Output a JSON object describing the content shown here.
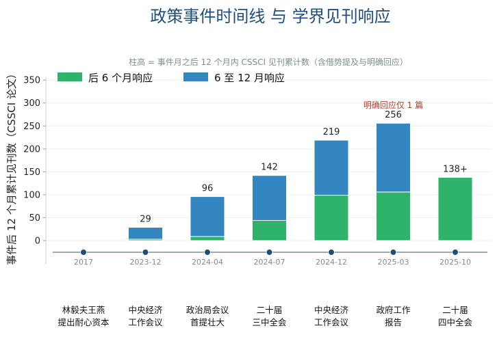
{
  "chart_data": {
    "type": "bar",
    "stacked": true,
    "title": "政策事件时间线 与 学界见刊响应",
    "subtitle": "柱高 = 事件月之后 12 个月内 CSSCI 见刊累计数（含借势提及与明确回应）",
    "ylabel": "事件后 12 个月累计见刊数（CSSCI 论文）",
    "ylim": [
      -25,
      350
    ],
    "yticks": [
      0,
      50,
      100,
      150,
      200,
      250,
      300,
      350
    ],
    "grid": true,
    "legend_position": "top-left",
    "categories": [
      "2017",
      "2023-12",
      "2024-04",
      "2024-07",
      "2024-12",
      "2025-03",
      "2025-10"
    ],
    "events": [
      [
        "林毅夫王燕",
        "提出耐心资本"
      ],
      [
        "中央经济",
        "工作会议"
      ],
      [
        "政治局会议",
        "首提壮大"
      ],
      [
        "二十届",
        "三中全会"
      ],
      [
        "中央经济",
        "工作会议"
      ],
      [
        "政府工作",
        "报告"
      ],
      [
        "二十届",
        "四中全会"
      ]
    ],
    "series": [
      {
        "name": "后 6 个月响应",
        "color": "#2fb36b",
        "values": [
          0,
          3,
          9,
          44,
          99,
          106,
          138
        ]
      },
      {
        "name": "6 至 12 月响应",
        "color": "#3386c0",
        "values": [
          0,
          26,
          87,
          98,
          120,
          150,
          0
        ]
      }
    ],
    "totals": [
      "",
      "29",
      "96",
      "142",
      "219",
      "256",
      "138+"
    ],
    "annotations": [
      {
        "category": "2025-03",
        "text": "明确回应仅 1 篇",
        "color": "#c0392b"
      }
    ],
    "timeline_color": "#7f8c8d",
    "marker_color": "#1f4e79"
  }
}
